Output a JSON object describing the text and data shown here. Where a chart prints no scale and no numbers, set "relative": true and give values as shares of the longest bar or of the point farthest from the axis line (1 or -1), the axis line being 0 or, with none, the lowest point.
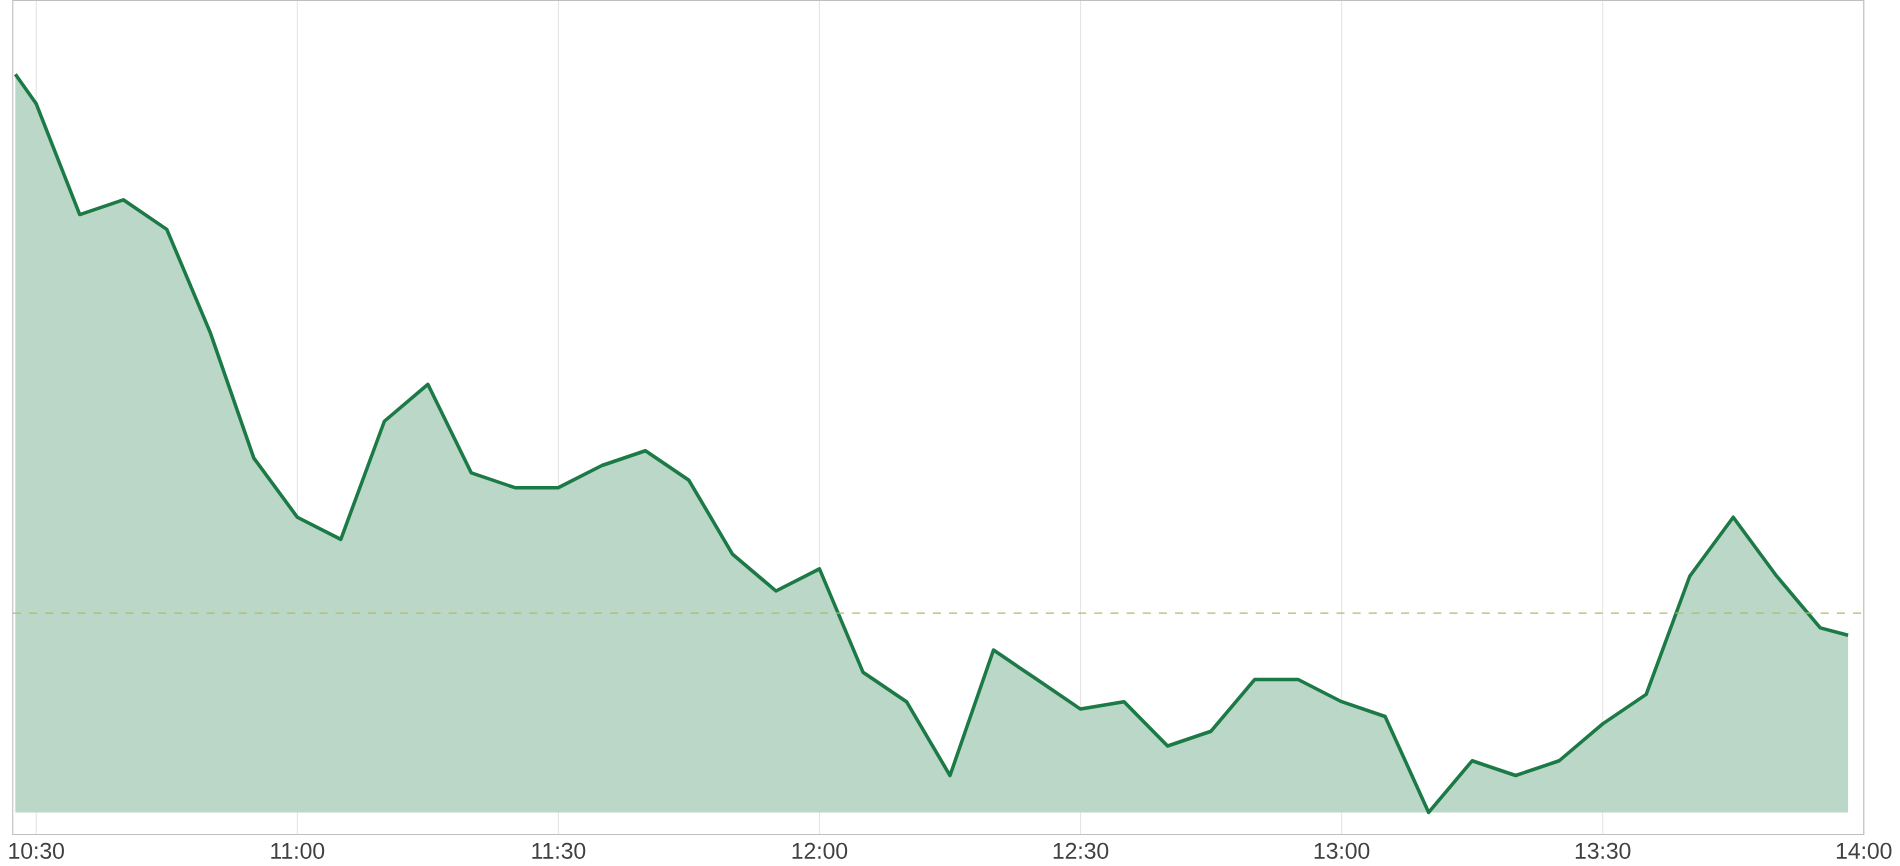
{
  "chart_data": {
    "type": "area",
    "relative": true,
    "x": [
      10.46,
      10.5,
      10.5833,
      10.6667,
      10.75,
      10.8333,
      10.9167,
      11.0,
      11.0833,
      11.1667,
      11.25,
      11.3333,
      11.4167,
      11.5,
      11.5833,
      11.6667,
      11.75,
      11.8333,
      11.9167,
      12.0,
      12.0833,
      12.1667,
      12.25,
      12.3333,
      12.4167,
      12.5,
      12.5833,
      12.6667,
      12.75,
      12.8333,
      12.9167,
      13.0,
      13.0833,
      13.1667,
      13.25,
      13.3333,
      13.4167,
      13.5,
      13.5833,
      13.6667,
      13.75,
      13.8333,
      13.9167,
      13.97
    ],
    "series": [
      {
        "color": "#1b7a45",
        "values": [
          1.0,
          0.96,
          0.81,
          0.83,
          0.79,
          0.65,
          0.48,
          0.4,
          0.37,
          0.53,
          0.58,
          0.46,
          0.44,
          0.44,
          0.47,
          0.49,
          0.45,
          0.35,
          0.3,
          0.33,
          0.19,
          0.15,
          0.05,
          0.22,
          0.18,
          0.14,
          0.15,
          0.09,
          0.11,
          0.18,
          0.18,
          0.15,
          0.13,
          0.0,
          0.07,
          0.05,
          0.07,
          0.12,
          0.16,
          0.32,
          0.4,
          0.32,
          0.25,
          0.24
        ]
      }
    ],
    "xlim": [
      10.455,
      14.0
    ],
    "xticks": [
      {
        "value": 10.5,
        "label": "10:30"
      },
      {
        "value": 11.0,
        "label": "11:00"
      },
      {
        "value": 11.5,
        "label": "11:30"
      },
      {
        "value": 12.0,
        "label": "12:00"
      },
      {
        "value": 12.5,
        "label": "12:30"
      },
      {
        "value": 13.0,
        "label": "13:00"
      },
      {
        "value": 13.5,
        "label": "13:30"
      },
      {
        "value": 14.0,
        "label": "14:00"
      }
    ],
    "ref_lines": [
      {
        "axis": "y",
        "value": 0.27,
        "color": "#b8b86a",
        "line_style": "dashed"
      }
    ],
    "grid": "x"
  }
}
